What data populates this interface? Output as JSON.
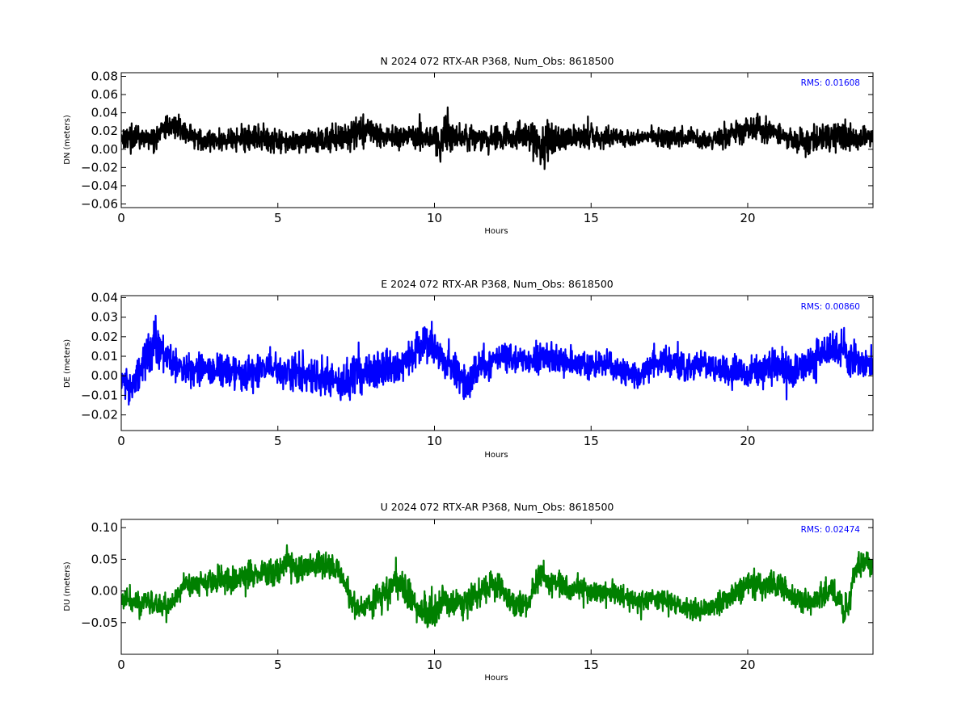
{
  "chart_data": [
    {
      "type": "line",
      "title": "N 2024 072 RTX-AR  P368, Num_Obs: 8618500",
      "xlabel": "Hours",
      "ylabel": "DN (meters)",
      "xlim": [
        0,
        24
      ],
      "ylim": [
        -0.064,
        0.084
      ],
      "xticks": [
        0,
        5,
        10,
        15,
        20
      ],
      "yticks": [
        -0.06,
        -0.04,
        -0.02,
        0.0,
        0.02,
        0.04,
        0.06,
        0.08
      ],
      "ytick_labels": [
        "−0.06",
        "−0.04",
        "−0.02",
        "0.00",
        "0.02",
        "0.04",
        "0.06",
        "0.08"
      ],
      "color": "#000000",
      "annotation": "RMS:  0.01608",
      "annotation_color": "#0000ff",
      "series": [
        {
          "x": [
            0,
            0.5,
            1.0,
            1.3,
            1.5,
            1.8,
            2.0,
            2.5,
            3.0,
            3.5,
            4.0,
            4.5,
            5.0,
            5.5,
            6.0,
            6.5,
            7.0,
            7.5,
            8.0,
            8.5,
            9.0,
            9.5,
            10.0,
            10.2,
            10.4,
            10.6,
            11.0,
            11.5,
            12.0,
            12.5,
            13.0,
            13.3,
            13.5,
            13.7,
            14.0,
            14.5,
            15.0,
            15.5,
            16.0,
            16.5,
            17.0,
            17.5,
            18.0,
            18.5,
            19.0,
            19.5,
            20.0,
            20.3,
            20.5,
            21.0,
            21.5,
            22.0,
            22.5,
            23.0,
            23.5,
            24.0
          ],
          "center": [
            0.013,
            0.012,
            0.01,
            0.02,
            0.028,
            0.025,
            0.02,
            0.01,
            0.008,
            0.012,
            0.01,
            0.012,
            0.01,
            0.009,
            0.012,
            0.01,
            0.013,
            0.02,
            0.018,
            0.015,
            0.012,
            0.014,
            0.013,
            0.01,
            0.02,
            0.015,
            0.012,
            0.01,
            0.012,
            0.014,
            0.013,
            0.008,
            0.003,
            0.01,
            0.014,
            0.012,
            0.012,
            0.014,
            0.012,
            0.013,
            0.014,
            0.012,
            0.014,
            0.01,
            0.012,
            0.015,
            0.022,
            0.026,
            0.02,
            0.018,
            0.01,
            0.01,
            0.012,
            0.014,
            0.01,
            0.012
          ],
          "half_range": [
            0.018,
            0.02,
            0.018,
            0.015,
            0.018,
            0.018,
            0.016,
            0.017,
            0.018,
            0.02,
            0.02,
            0.022,
            0.018,
            0.02,
            0.02,
            0.02,
            0.022,
            0.025,
            0.022,
            0.02,
            0.018,
            0.02,
            0.02,
            0.03,
            0.04,
            0.025,
            0.02,
            0.018,
            0.02,
            0.022,
            0.025,
            0.04,
            0.045,
            0.03,
            0.02,
            0.018,
            0.018,
            0.016,
            0.016,
            0.015,
            0.015,
            0.015,
            0.014,
            0.016,
            0.018,
            0.02,
            0.02,
            0.022,
            0.02,
            0.018,
            0.02,
            0.02,
            0.02,
            0.024,
            0.018,
            0.016
          ]
        }
      ]
    },
    {
      "type": "line",
      "title": "E 2024 072 RTX-AR  P368, Num_Obs: 8618500",
      "xlabel": "Hours",
      "ylabel": "DE (meters)",
      "xlim": [
        0,
        24
      ],
      "ylim": [
        -0.028,
        0.041
      ],
      "xticks": [
        0,
        5,
        10,
        15,
        20
      ],
      "yticks": [
        -0.02,
        -0.01,
        0.0,
        0.01,
        0.02,
        0.03,
        0.04
      ],
      "ytick_labels": [
        "−0.02",
        "−0.01",
        "0.00",
        "0.01",
        "0.02",
        "0.03",
        "0.04"
      ],
      "color": "#0000ff",
      "annotation": "RMS:  0.00860",
      "annotation_color": "#0000ff",
      "series": [
        {
          "x": [
            0,
            0.3,
            0.6,
            0.9,
            1.1,
            1.4,
            1.7,
            2.0,
            2.5,
            3.0,
            3.5,
            4.0,
            4.5,
            5.0,
            5.5,
            6.0,
            6.5,
            7.0,
            7.5,
            8.0,
            8.5,
            9.0,
            9.5,
            9.8,
            10.2,
            10.6,
            11.0,
            11.5,
            12.0,
            12.5,
            13.0,
            13.5,
            14.0,
            14.5,
            15.0,
            15.5,
            16.0,
            16.5,
            17.0,
            17.5,
            18.0,
            18.5,
            19.0,
            19.5,
            20.0,
            20.5,
            21.0,
            21.5,
            22.0,
            22.5,
            23.0,
            23.5,
            24.0
          ],
          "center": [
            -0.003,
            -0.005,
            0.002,
            0.015,
            0.018,
            0.01,
            0.006,
            0.004,
            0.003,
            0.004,
            0.002,
            0.0,
            0.004,
            0.003,
            0.002,
            0.0,
            -0.002,
            -0.003,
            0.0,
            0.002,
            0.004,
            0.006,
            0.012,
            0.018,
            0.008,
            0.002,
            -0.004,
            0.004,
            0.01,
            0.008,
            0.008,
            0.01,
            0.008,
            0.006,
            0.004,
            0.006,
            0.002,
            0.0,
            0.006,
            0.008,
            0.004,
            0.006,
            0.004,
            0.002,
            0.0,
            0.004,
            0.006,
            0.002,
            0.006,
            0.012,
            0.014,
            0.008,
            0.006
          ],
          "half_range": [
            0.012,
            0.012,
            0.014,
            0.016,
            0.018,
            0.014,
            0.012,
            0.012,
            0.012,
            0.013,
            0.012,
            0.013,
            0.013,
            0.012,
            0.014,
            0.013,
            0.014,
            0.016,
            0.015,
            0.013,
            0.013,
            0.012,
            0.014,
            0.015,
            0.013,
            0.012,
            0.012,
            0.012,
            0.012,
            0.012,
            0.011,
            0.011,
            0.011,
            0.01,
            0.01,
            0.01,
            0.01,
            0.01,
            0.012,
            0.012,
            0.011,
            0.011,
            0.01,
            0.01,
            0.011,
            0.012,
            0.013,
            0.014,
            0.014,
            0.013,
            0.013,
            0.011,
            0.011
          ]
        }
      ]
    },
    {
      "type": "line",
      "title": "U 2024 072 RTX-AR  P368, Num_Obs: 8618500",
      "xlabel": "Hours",
      "ylabel": "DU (meters)",
      "xlim": [
        0,
        24
      ],
      "ylim": [
        -0.1,
        0.113
      ],
      "xticks": [
        0,
        5,
        10,
        15,
        20
      ],
      "yticks": [
        -0.05,
        0.0,
        0.05,
        0.1
      ],
      "ytick_labels": [
        "−0.05",
        "0.00",
        "0.05",
        "0.10"
      ],
      "color": "#008000",
      "annotation": "RMS:  0.02474",
      "annotation_color": "#0000ff",
      "series": [
        {
          "x": [
            0,
            0.5,
            1.0,
            1.5,
            2.0,
            2.5,
            3.0,
            3.5,
            4.0,
            4.5,
            5.0,
            5.3,
            5.6,
            6.0,
            6.5,
            7.0,
            7.3,
            7.6,
            8.0,
            8.5,
            8.8,
            9.2,
            9.6,
            10.0,
            10.3,
            10.7,
            11.0,
            11.5,
            12.0,
            12.5,
            13.0,
            13.4,
            13.7,
            14.0,
            14.5,
            15.0,
            15.5,
            16.0,
            16.5,
            17.0,
            17.5,
            18.0,
            18.5,
            19.0,
            19.5,
            20.0,
            20.5,
            21.0,
            21.5,
            22.0,
            22.5,
            22.8,
            23.1,
            23.5,
            24.0
          ],
          "center": [
            -0.01,
            -0.02,
            -0.015,
            -0.03,
            0.01,
            0.015,
            0.02,
            0.015,
            0.025,
            0.03,
            0.03,
            0.05,
            0.03,
            0.04,
            0.04,
            0.03,
            -0.01,
            -0.03,
            -0.02,
            0.0,
            0.02,
            -0.005,
            -0.03,
            -0.035,
            -0.01,
            -0.02,
            -0.02,
            0.0,
            0.01,
            -0.02,
            -0.015,
            0.03,
            0.01,
            0.01,
            0.005,
            0.0,
            -0.005,
            -0.01,
            -0.02,
            -0.01,
            -0.02,
            -0.03,
            -0.03,
            -0.02,
            -0.01,
            0.01,
            0.01,
            0.01,
            -0.01,
            -0.02,
            0.0,
            0.0,
            -0.04,
            0.04,
            0.04
          ],
          "half_range": [
            0.025,
            0.028,
            0.028,
            0.03,
            0.028,
            0.028,
            0.028,
            0.03,
            0.03,
            0.03,
            0.03,
            0.03,
            0.028,
            0.03,
            0.03,
            0.03,
            0.03,
            0.03,
            0.035,
            0.04,
            0.045,
            0.04,
            0.04,
            0.042,
            0.04,
            0.035,
            0.03,
            0.03,
            0.03,
            0.03,
            0.03,
            0.03,
            0.03,
            0.03,
            0.028,
            0.025,
            0.025,
            0.025,
            0.025,
            0.025,
            0.024,
            0.024,
            0.025,
            0.025,
            0.03,
            0.032,
            0.032,
            0.03,
            0.03,
            0.03,
            0.03,
            0.03,
            0.035,
            0.035,
            0.03
          ]
        }
      ]
    }
  ]
}
